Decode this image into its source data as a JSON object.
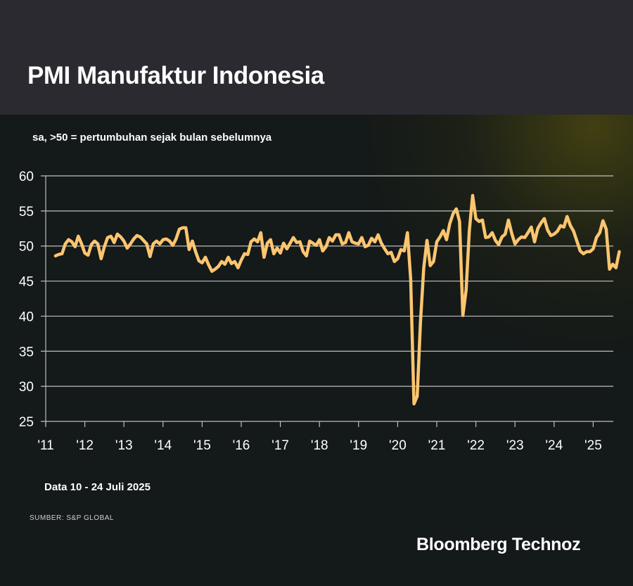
{
  "header": {
    "title": "PMI Manufaktur Indonesia"
  },
  "subtitle": "sa, >50 = pertumbuhan sejak bulan sebelumnya",
  "note": "Data 10 - 24 Juli 2025",
  "source": "SUMBER: S&P GLOBAL",
  "brand": "Bloomberg Technoz",
  "colors": {
    "line": "#fcc56f",
    "header_bg": "#2a2a30",
    "body_bg": "#141919",
    "grid": "#bfbfbf"
  },
  "chart_data": {
    "type": "line",
    "title": "PMI Manufaktur Indonesia",
    "subtitle": "sa, >50 = pertumbuhan sejak bulan sebelumnya",
    "xlabel": "",
    "ylabel": "",
    "ylim": [
      25,
      60
    ],
    "yticks": [
      60,
      55,
      50,
      45,
      40,
      35,
      30,
      25
    ],
    "xlim": [
      2011.0,
      2025.55
    ],
    "xticks": [
      2011,
      2012,
      2013,
      2014,
      2015,
      2016,
      2017,
      2018,
      2019,
      2020,
      2021,
      2022,
      2023,
      2024,
      2025
    ],
    "xtick_labels": [
      "'11",
      "'12",
      "'13",
      "'14",
      "'15",
      "'16",
      "'17",
      "'18",
      "'19",
      "'20",
      "'21",
      "'22",
      "'23",
      "'24",
      "'25"
    ],
    "grid": true,
    "start": "2011-04",
    "frequency": "monthly",
    "series": [
      {
        "name": "PMI Manufaktur Indonesia",
        "values": [
          48.6,
          48.8,
          48.9,
          50.3,
          50.9,
          50.6,
          49.9,
          51.4,
          50.3,
          49.0,
          48.7,
          50.2,
          50.7,
          50.3,
          48.2,
          49.9,
          51.2,
          51.4,
          50.5,
          51.7,
          51.3,
          50.7,
          49.7,
          50.3,
          51.0,
          51.5,
          51.3,
          50.8,
          50.3,
          48.5,
          50.3,
          50.7,
          50.3,
          50.9,
          51.0,
          50.7,
          50.1,
          51.0,
          52.4,
          52.6,
          52.6,
          49.5,
          50.7,
          49.2,
          47.9,
          47.6,
          48.4,
          47.3,
          46.4,
          46.7,
          47.1,
          47.8,
          47.4,
          48.4,
          47.5,
          47.8,
          46.9,
          48.0,
          48.9,
          48.8,
          50.6,
          51.0,
          50.6,
          51.9,
          48.4,
          50.4,
          50.9,
          48.9,
          49.7,
          49.0,
          50.4,
          49.6,
          50.4,
          51.2,
          50.5,
          50.6,
          49.2,
          48.6,
          50.7,
          50.4,
          50.1,
          50.9,
          49.3,
          49.9,
          51.2,
          50.7,
          51.6,
          51.6,
          50.3,
          50.5,
          51.9,
          50.6,
          50.4,
          50.3,
          51.2,
          49.9,
          50.1,
          51.1,
          50.6,
          51.6,
          50.4,
          49.6,
          48.9,
          49.1,
          47.8,
          48.2,
          49.5,
          49.3,
          51.9,
          45.3,
          27.5,
          28.6,
          39.1,
          46.9,
          50.8,
          47.2,
          47.8,
          50.6,
          51.3,
          52.2,
          50.9,
          53.2,
          54.6,
          55.3,
          53.5,
          40.1,
          43.7,
          52.2,
          57.2,
          53.9,
          53.5,
          53.7,
          51.2,
          51.3,
          51.9,
          50.8,
          50.2,
          51.3,
          51.7,
          53.7,
          51.8,
          50.3,
          50.9,
          51.3,
          51.2,
          51.9,
          52.7,
          50.6,
          52.5,
          53.3,
          53.9,
          52.3,
          51.5,
          51.7,
          52.1,
          52.9,
          52.7,
          54.2,
          52.9,
          52.1,
          50.7,
          49.3,
          48.9,
          49.2,
          49.2,
          49.6,
          51.2,
          51.9,
          53.6,
          52.4,
          46.7,
          47.4,
          46.9,
          49.2
        ]
      }
    ]
  }
}
